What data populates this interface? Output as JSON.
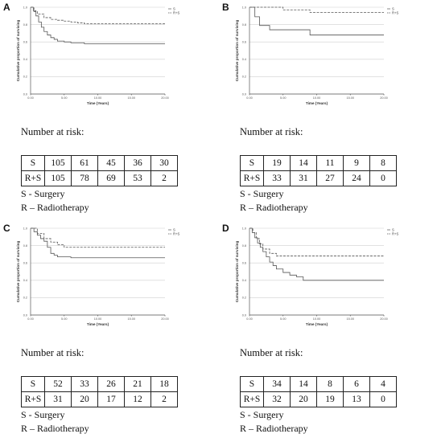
{
  "chart_data": [
    {
      "type": "line",
      "panel": "A",
      "xlabel": "Time (Years)",
      "ylabel": "Cumulative proportion of surviving",
      "xlim": [
        0,
        20
      ],
      "ylim": [
        0,
        1
      ],
      "xticks": [
        "0.00",
        "5.00",
        "10.00",
        "15.00",
        "20.00"
      ],
      "yticks": [
        "0.0",
        "0.2",
        "0.4",
        "0.6",
        "0.8",
        "1.0"
      ],
      "grid": true,
      "legend": "top-right",
      "series": [
        {
          "name": "S",
          "style": "solid",
          "x": [
            0,
            0.4,
            0.8,
            1.2,
            1.6,
            2,
            2.5,
            3,
            3.5,
            4,
            5,
            6,
            7,
            8,
            10,
            20
          ],
          "y": [
            1,
            0.96,
            0.9,
            0.83,
            0.77,
            0.72,
            0.68,
            0.65,
            0.63,
            0.61,
            0.6,
            0.59,
            0.59,
            0.58,
            0.58,
            0.58
          ]
        },
        {
          "name": "R+S",
          "style": "dashed",
          "x": [
            0,
            0.5,
            1,
            2,
            3,
            4,
            5,
            6,
            7,
            8,
            20
          ],
          "y": [
            1,
            0.95,
            0.92,
            0.88,
            0.86,
            0.85,
            0.84,
            0.83,
            0.82,
            0.81,
            0.81
          ]
        }
      ]
    },
    {
      "type": "line",
      "panel": "B",
      "xlabel": "Time (Years)",
      "ylabel": "Cumulative proportion of surviving",
      "xlim": [
        0,
        20
      ],
      "ylim": [
        0,
        1
      ],
      "xticks": [
        "0.00",
        "5.00",
        "10.00",
        "15.00",
        "20.00"
      ],
      "yticks": [
        "0.0",
        "0.2",
        "0.4",
        "0.6",
        "0.8",
        "1.0"
      ],
      "grid": true,
      "legend": "top-right",
      "series": [
        {
          "name": "S",
          "style": "solid",
          "x": [
            0,
            0.8,
            1.5,
            3,
            9,
            20
          ],
          "y": [
            1,
            0.89,
            0.79,
            0.74,
            0.68,
            0.68
          ]
        },
        {
          "name": "R+S",
          "style": "dashed",
          "x": [
            0,
            4,
            5,
            9,
            20
          ],
          "y": [
            1,
            1,
            0.97,
            0.94,
            0.94
          ]
        }
      ]
    },
    {
      "type": "line",
      "panel": "C",
      "xlabel": "Time (Years)",
      "ylabel": "Cumulative proportion of surviving",
      "xlim": [
        0,
        20
      ],
      "ylim": [
        0,
        1
      ],
      "xticks": [
        "0.00",
        "5.00",
        "10.00",
        "15.00",
        "20.00"
      ],
      "yticks": [
        "0.0",
        "0.2",
        "0.4",
        "0.6",
        "0.8",
        "1.0"
      ],
      "grid": true,
      "legend": "top-right",
      "series": [
        {
          "name": "S",
          "style": "solid",
          "x": [
            0,
            0.5,
            1,
            1.5,
            2,
            2.5,
            3,
            3.5,
            4,
            6,
            20
          ],
          "y": [
            1,
            0.96,
            0.92,
            0.88,
            0.85,
            0.78,
            0.71,
            0.69,
            0.67,
            0.66,
            0.66
          ]
        },
        {
          "name": "R+S",
          "style": "dashed",
          "x": [
            0,
            1,
            2,
            3,
            4,
            5,
            20
          ],
          "y": [
            1,
            0.94,
            0.88,
            0.84,
            0.81,
            0.78,
            0.78
          ]
        }
      ]
    },
    {
      "type": "line",
      "panel": "D",
      "xlabel": "Time (Years)",
      "ylabel": "Cumulative proportion of surviving",
      "xlim": [
        0,
        20
      ],
      "ylim": [
        0,
        1
      ],
      "xticks": [
        "0.00",
        "5.00",
        "10.00",
        "15.00",
        "20.00"
      ],
      "yticks": [
        "0.0",
        "0.2",
        "0.4",
        "0.6",
        "0.8",
        "1.0"
      ],
      "grid": true,
      "legend": "top-right",
      "series": [
        {
          "name": "S",
          "style": "solid",
          "x": [
            0,
            0.4,
            0.8,
            1.2,
            1.6,
            2,
            2.5,
            3,
            3.5,
            4,
            5,
            6,
            7,
            8,
            20
          ],
          "y": [
            1,
            0.95,
            0.89,
            0.83,
            0.78,
            0.73,
            0.67,
            0.61,
            0.57,
            0.53,
            0.49,
            0.46,
            0.44,
            0.4,
            0.4
          ]
        },
        {
          "name": "R+S",
          "style": "dashed",
          "x": [
            0,
            0.5,
            1,
            1.5,
            2,
            3,
            4,
            20
          ],
          "y": [
            1,
            0.95,
            0.88,
            0.82,
            0.76,
            0.71,
            0.68,
            0.68
          ]
        }
      ]
    }
  ],
  "panels": [
    {
      "label": "A",
      "risk_title": "Number at risk:",
      "rows": [
        {
          "label": "S",
          "values": [
            "105",
            "61",
            "45",
            "36",
            "30"
          ]
        },
        {
          "label": "R+S",
          "values": [
            "105",
            "78",
            "69",
            "53",
            "2"
          ]
        }
      ],
      "legend_lines": [
        "S - Surgery",
        "R – Radiotherapy"
      ]
    },
    {
      "label": "B",
      "risk_title": "Number at risk:",
      "rows": [
        {
          "label": "S",
          "values": [
            "19",
            "14",
            "11",
            "9",
            "8"
          ]
        },
        {
          "label": "R+S",
          "values": [
            "33",
            "31",
            "27",
            "24",
            "0"
          ]
        }
      ],
      "legend_lines": [
        "S - Surgery",
        "R – Radiotherapy"
      ]
    },
    {
      "label": "C",
      "risk_title": "Number at risk:",
      "rows": [
        {
          "label": "S",
          "values": [
            "52",
            "33",
            "26",
            "21",
            "18"
          ]
        },
        {
          "label": "R+S",
          "values": [
            "31",
            "20",
            "17",
            "12",
            "2"
          ]
        }
      ],
      "legend_lines": [
        "S - Surgery",
        "R – Radiotherapy"
      ]
    },
    {
      "label": "D",
      "risk_title": "Number at risk:",
      "rows": [
        {
          "label": "S",
          "values": [
            "34",
            "14",
            "8",
            "6",
            "4"
          ]
        },
        {
          "label": "R+S",
          "values": [
            "32",
            "20",
            "19",
            "13",
            "0"
          ]
        }
      ],
      "legend_lines": [
        "S - Surgery",
        "R – Radiotherapy"
      ]
    }
  ],
  "colors": {
    "line": "#555555",
    "grid": "#cfcfcf",
    "axis": "#555555"
  }
}
